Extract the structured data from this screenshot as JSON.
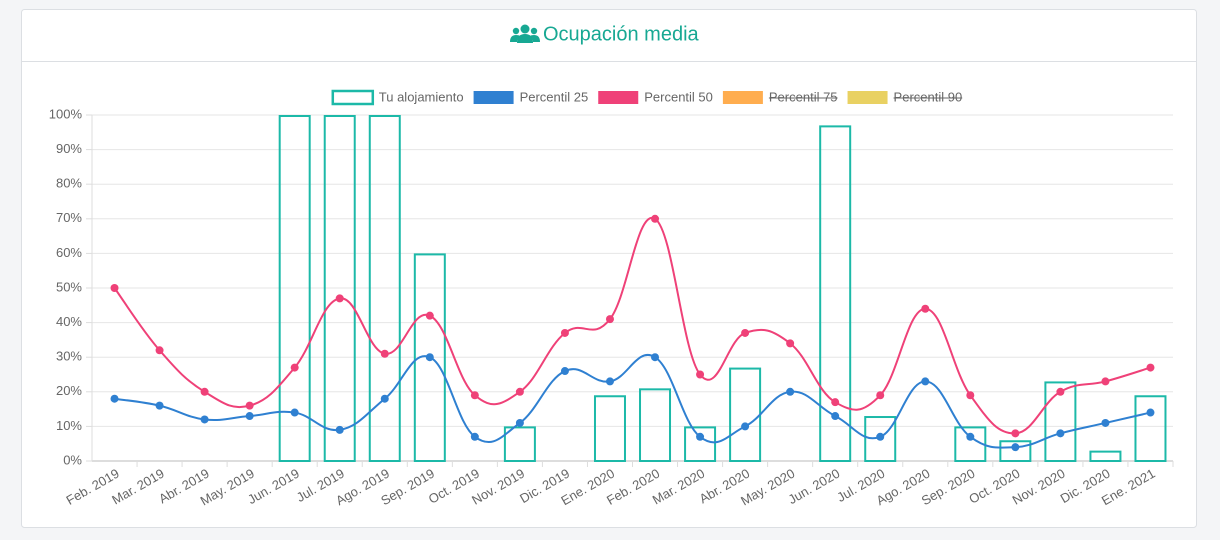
{
  "chart_data": {
    "type": "bar-line",
    "title": "Ocupación media",
    "categories": [
      "Feb. 2019",
      "Mar. 2019",
      "Abr. 2019",
      "May. 2019",
      "Jun. 2019",
      "Jul. 2019",
      "Ago. 2019",
      "Sep. 2019",
      "Oct. 2019",
      "Nov. 2019",
      "Dic. 2019",
      "Ene. 2020",
      "Feb. 2020",
      "Mar. 2020",
      "Abr. 2020",
      "May. 2020",
      "Jun. 2020",
      "Jul. 2020",
      "Ago. 2020",
      "Sep. 2020",
      "Oct. 2020",
      "Nov. 2020",
      "Dic. 2020",
      "Ene. 2021"
    ],
    "series": [
      {
        "name": "Tu alojamiento",
        "type": "bar",
        "color": "#1cb9a8",
        "values": [
          null,
          null,
          null,
          null,
          100,
          100,
          100,
          60,
          null,
          10,
          null,
          19,
          21,
          10,
          27,
          null,
          97,
          13,
          null,
          10,
          6,
          23,
          3,
          19
        ]
      },
      {
        "name": "Percentil 25",
        "type": "line",
        "color": "#2f80d1",
        "values": [
          18,
          16,
          12,
          13,
          14,
          9,
          18,
          30,
          7,
          11,
          26,
          23,
          30,
          7,
          10,
          20,
          13,
          7,
          23,
          7,
          4,
          8,
          11,
          14
        ]
      },
      {
        "name": "Percentil 50",
        "type": "line",
        "color": "#ef4178",
        "values": [
          50,
          32,
          20,
          16,
          27,
          47,
          31,
          42,
          19,
          20,
          37,
          41,
          70,
          25,
          37,
          34,
          17,
          19,
          44,
          19,
          8,
          20,
          23,
          27
        ]
      },
      {
        "name": "Percentil 75",
        "type": "line",
        "color": "#ffad4f",
        "hidden": true,
        "values": [
          null,
          null,
          null,
          null,
          null,
          null,
          null,
          null,
          null,
          null,
          null,
          null,
          null,
          null,
          null,
          null,
          null,
          null,
          null,
          null,
          null,
          null,
          null,
          null
        ]
      },
      {
        "name": "Percentil 90",
        "type": "line",
        "color": "#e9d162",
        "hidden": true,
        "values": [
          null,
          null,
          null,
          null,
          null,
          null,
          null,
          null,
          null,
          null,
          null,
          null,
          null,
          null,
          null,
          null,
          null,
          null,
          null,
          null,
          null,
          null,
          null,
          null
        ]
      }
    ],
    "ylim": [
      0,
      100
    ],
    "yticks": [
      {
        "value": 0,
        "label": "0%"
      },
      {
        "value": 10,
        "label": "10%"
      },
      {
        "value": 20,
        "label": "20%"
      },
      {
        "value": 30,
        "label": "30%"
      },
      {
        "value": 40,
        "label": "40%"
      },
      {
        "value": 50,
        "label": "50%"
      },
      {
        "value": 60,
        "label": "60%"
      },
      {
        "value": 70,
        "label": "70%"
      },
      {
        "value": 80,
        "label": "80%"
      },
      {
        "value": 90,
        "label": "90%"
      },
      {
        "value": 100,
        "label": "100%"
      }
    ],
    "grid": true,
    "legend": "top"
  }
}
